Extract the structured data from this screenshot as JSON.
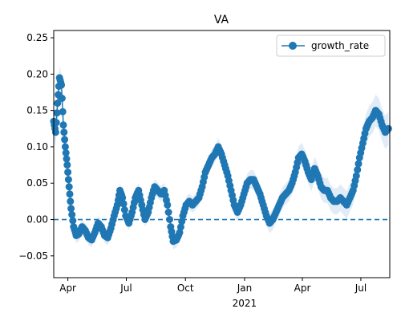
{
  "chart_data": {
    "type": "line",
    "title": "VA",
    "xlabel": "",
    "ylabel": "",
    "ylim": [
      -0.08,
      0.26
    ],
    "yticks": [
      {
        "value": -0.05,
        "label": "−0.05"
      },
      {
        "value": 0.0,
        "label": "0.00"
      },
      {
        "value": 0.05,
        "label": "0.05"
      },
      {
        "value": 0.1,
        "label": "0.10"
      },
      {
        "value": 0.15,
        "label": "0.15"
      },
      {
        "value": 0.2,
        "label": "0.20"
      },
      {
        "value": 0.25,
        "label": "0.25"
      }
    ],
    "xlim": [
      "2020-03-10",
      "2021-08-15"
    ],
    "xticks": [
      {
        "date": "2020-04-01",
        "label": "Apr"
      },
      {
        "date": "2020-07-01",
        "label": "Jul"
      },
      {
        "date": "2020-10-01",
        "label": "Oct"
      },
      {
        "date": "2021-01-01",
        "label": "Jan",
        "sublabel": "2021"
      },
      {
        "date": "2021-04-01",
        "label": "Apr"
      },
      {
        "date": "2021-07-01",
        "label": "Jul"
      }
    ],
    "reference_line": {
      "y": 0.0,
      "style": "dashed"
    },
    "legend": {
      "position": "top-right",
      "entries": [
        "growth_rate"
      ]
    },
    "series": [
      {
        "name": "growth_rate",
        "color": "#1f77b4",
        "band_color": "#dce9f5",
        "points": [
          [
            "2020-03-10",
            0.135
          ],
          [
            "2020-03-13",
            0.12
          ],
          [
            "2020-03-16",
            0.16
          ],
          [
            "2020-03-19",
            0.195
          ],
          [
            "2020-03-22",
            0.185
          ],
          [
            "2020-03-25",
            0.13
          ],
          [
            "2020-03-28",
            0.1
          ],
          [
            "2020-03-31",
            0.075
          ],
          [
            "2020-04-03",
            0.045
          ],
          [
            "2020-04-06",
            0.015
          ],
          [
            "2020-04-10",
            -0.01
          ],
          [
            "2020-04-14",
            -0.022
          ],
          [
            "2020-04-18",
            -0.02
          ],
          [
            "2020-04-23",
            -0.01
          ],
          [
            "2020-04-28",
            -0.015
          ],
          [
            "2020-05-03",
            -0.025
          ],
          [
            "2020-05-08",
            -0.028
          ],
          [
            "2020-05-13",
            -0.018
          ],
          [
            "2020-05-18",
            -0.005
          ],
          [
            "2020-05-23",
            -0.01
          ],
          [
            "2020-05-28",
            -0.022
          ],
          [
            "2020-06-02",
            -0.025
          ],
          [
            "2020-06-07",
            -0.012
          ],
          [
            "2020-06-12",
            0.005
          ],
          [
            "2020-06-17",
            0.02
          ],
          [
            "2020-06-21",
            0.04
          ],
          [
            "2020-06-25",
            0.03
          ],
          [
            "2020-06-30",
            0.005
          ],
          [
            "2020-07-05",
            -0.005
          ],
          [
            "2020-07-10",
            0.01
          ],
          [
            "2020-07-15",
            0.03
          ],
          [
            "2020-07-20",
            0.04
          ],
          [
            "2020-07-25",
            0.02
          ],
          [
            "2020-07-30",
            0.0
          ],
          [
            "2020-08-04",
            0.01
          ],
          [
            "2020-08-09",
            0.03
          ],
          [
            "2020-08-14",
            0.045
          ],
          [
            "2020-08-19",
            0.04
          ],
          [
            "2020-08-24",
            0.035
          ],
          [
            "2020-08-29",
            0.04
          ],
          [
            "2020-09-03",
            0.02
          ],
          [
            "2020-09-08",
            -0.01
          ],
          [
            "2020-09-12",
            -0.03
          ],
          [
            "2020-09-17",
            -0.028
          ],
          [
            "2020-09-22",
            -0.018
          ],
          [
            "2020-09-27",
            0.005
          ],
          [
            "2020-10-02",
            0.02
          ],
          [
            "2020-10-07",
            0.025
          ],
          [
            "2020-10-12",
            0.02
          ],
          [
            "2020-10-17",
            0.025
          ],
          [
            "2020-10-22",
            0.03
          ],
          [
            "2020-10-27",
            0.045
          ],
          [
            "2020-11-01",
            0.065
          ],
          [
            "2020-11-06",
            0.075
          ],
          [
            "2020-11-11",
            0.085
          ],
          [
            "2020-11-16",
            0.09
          ],
          [
            "2020-11-21",
            0.1
          ],
          [
            "2020-11-26",
            0.09
          ],
          [
            "2020-12-01",
            0.075
          ],
          [
            "2020-12-06",
            0.06
          ],
          [
            "2020-12-11",
            0.04
          ],
          [
            "2020-12-16",
            0.02
          ],
          [
            "2020-12-21",
            0.01
          ],
          [
            "2020-12-26",
            0.02
          ],
          [
            "2020-12-31",
            0.035
          ],
          [
            "2021-01-05",
            0.05
          ],
          [
            "2021-01-10",
            0.055
          ],
          [
            "2021-01-15",
            0.055
          ],
          [
            "2021-01-20",
            0.045
          ],
          [
            "2021-01-25",
            0.035
          ],
          [
            "2021-01-30",
            0.02
          ],
          [
            "2021-02-04",
            0.005
          ],
          [
            "2021-02-09",
            -0.005
          ],
          [
            "2021-02-14",
            0.0
          ],
          [
            "2021-02-19",
            0.01
          ],
          [
            "2021-02-24",
            0.02
          ],
          [
            "2021-03-01",
            0.03
          ],
          [
            "2021-03-06",
            0.035
          ],
          [
            "2021-03-11",
            0.04
          ],
          [
            "2021-03-16",
            0.05
          ],
          [
            "2021-03-21",
            0.065
          ],
          [
            "2021-03-26",
            0.085
          ],
          [
            "2021-03-31",
            0.09
          ],
          [
            "2021-04-05",
            0.08
          ],
          [
            "2021-04-10",
            0.065
          ],
          [
            "2021-04-15",
            0.055
          ],
          [
            "2021-04-20",
            0.07
          ],
          [
            "2021-04-25",
            0.06
          ],
          [
            "2021-04-30",
            0.045
          ],
          [
            "2021-05-05",
            0.04
          ],
          [
            "2021-05-10",
            0.04
          ],
          [
            "2021-05-15",
            0.03
          ],
          [
            "2021-05-20",
            0.025
          ],
          [
            "2021-05-25",
            0.025
          ],
          [
            "2021-05-30",
            0.03
          ],
          [
            "2021-06-04",
            0.025
          ],
          [
            "2021-06-09",
            0.02
          ],
          [
            "2021-06-14",
            0.03
          ],
          [
            "2021-06-19",
            0.04
          ],
          [
            "2021-06-24",
            0.06
          ],
          [
            "2021-06-29",
            0.085
          ],
          [
            "2021-07-04",
            0.105
          ],
          [
            "2021-07-09",
            0.125
          ],
          [
            "2021-07-14",
            0.135
          ],
          [
            "2021-07-19",
            0.14
          ],
          [
            "2021-07-24",
            0.15
          ],
          [
            "2021-07-29",
            0.145
          ],
          [
            "2021-08-03",
            0.13
          ],
          [
            "2021-08-08",
            0.12
          ],
          [
            "2021-08-13",
            0.125
          ]
        ]
      }
    ]
  }
}
